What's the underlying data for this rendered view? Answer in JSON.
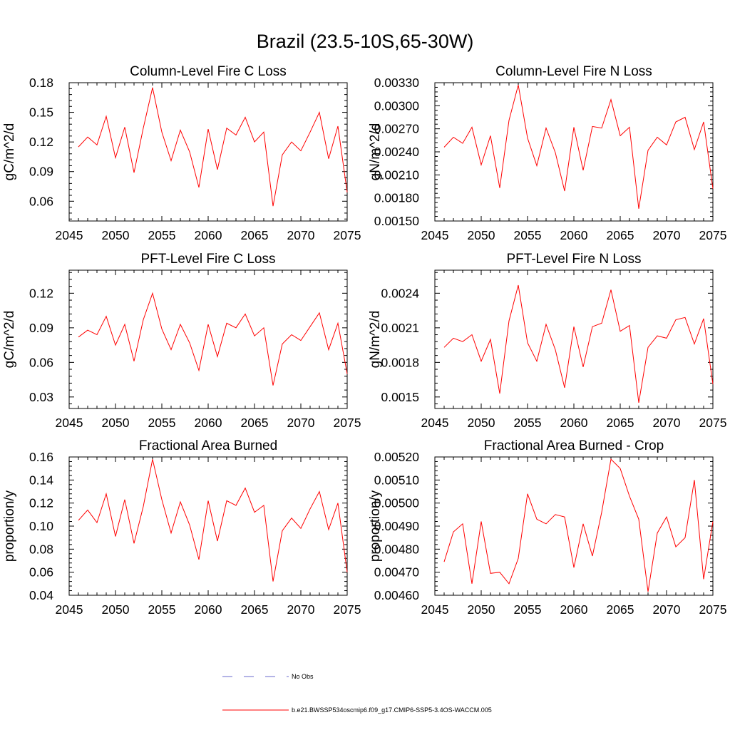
{
  "title": "Brazil (23.5-10S,65-30W)",
  "colors": {
    "model": "#ff0000",
    "obs": "#6a6acd",
    "axis": "#000000"
  },
  "legend": {
    "obs_label": "No Obs",
    "model_label": "b.e21.BWSSP534oscmip6.f09_g17.CMIP6-SSP5-3.4OS-WACCM.005"
  },
  "chart_data": [
    {
      "type": "line",
      "title": "Column-Level Fire C Loss",
      "ylabel": "gC/m^2/d",
      "xlim": [
        2045,
        2075
      ],
      "xticks": [
        2045,
        2050,
        2055,
        2060,
        2065,
        2070,
        2075
      ],
      "xtick_labels": [
        "2045",
        "2050",
        "2055",
        "2060",
        "2065",
        "2070",
        "2075"
      ],
      "ylim": [
        0.04,
        0.18
      ],
      "yticks": [
        0.06,
        0.09,
        0.12,
        0.15,
        0.18
      ],
      "ytick_labels": [
        "0.06",
        "0.09",
        "0.12",
        "0.15",
        "0.18"
      ],
      "x": [
        2046,
        2047,
        2048,
        2049,
        2050,
        2051,
        2052,
        2053,
        2054,
        2055,
        2056,
        2057,
        2058,
        2059,
        2060,
        2061,
        2062,
        2063,
        2064,
        2065,
        2066,
        2067,
        2068,
        2069,
        2070,
        2071,
        2072,
        2073,
        2074,
        2075
      ],
      "series": [
        {
          "name": "b.e21.BWSSP534oscmip6.f09_g17.CMIP6-SSP5-3.4OS-WACCM.005",
          "values": [
            0.115,
            0.125,
            0.117,
            0.146,
            0.104,
            0.135,
            0.089,
            0.134,
            0.175,
            0.13,
            0.101,
            0.132,
            0.11,
            0.074,
            0.133,
            0.092,
            0.134,
            0.127,
            0.145,
            0.12,
            0.13,
            0.055,
            0.107,
            0.12,
            0.111,
            0.13,
            0.15,
            0.103,
            0.136,
            0.069
          ]
        }
      ]
    },
    {
      "type": "line",
      "title": "Column-Level Fire N Loss",
      "ylabel": "gN/m^2/d",
      "xlim": [
        2045,
        2075
      ],
      "xticks": [
        2045,
        2050,
        2055,
        2060,
        2065,
        2070,
        2075
      ],
      "xtick_labels": [
        "2045",
        "2050",
        "2055",
        "2060",
        "2065",
        "2070",
        "2075"
      ],
      "ylim": [
        0.0015,
        0.0033
      ],
      "yticks": [
        0.0015,
        0.0018,
        0.0021,
        0.0024,
        0.0027,
        0.003,
        0.0033
      ],
      "ytick_labels": [
        "0.00150",
        "0.00180",
        "0.00210",
        "0.00240",
        "0.00270",
        "0.00300",
        "0.00330"
      ],
      "x": [
        2046,
        2047,
        2048,
        2049,
        2050,
        2051,
        2052,
        2053,
        2054,
        2055,
        2056,
        2057,
        2058,
        2059,
        2060,
        2061,
        2062,
        2063,
        2064,
        2065,
        2066,
        2067,
        2068,
        2069,
        2070,
        2071,
        2072,
        2073,
        2074,
        2075
      ],
      "series": [
        {
          "name": "b.e21.BWSSP534oscmip6.f09_g17.CMIP6-SSP5-3.4OS-WACCM.005",
          "values": [
            0.00246,
            0.00259,
            0.00251,
            0.00272,
            0.00223,
            0.00261,
            0.00193,
            0.00281,
            0.00327,
            0.00258,
            0.00222,
            0.00271,
            0.00239,
            0.00189,
            0.00272,
            0.00216,
            0.00273,
            0.00271,
            0.00308,
            0.00261,
            0.00272,
            0.00166,
            0.00242,
            0.00259,
            0.00249,
            0.00279,
            0.00285,
            0.00243,
            0.00279,
            0.00192
          ]
        }
      ]
    },
    {
      "type": "line",
      "title": "PFT-Level Fire C Loss",
      "ylabel": "gC/m^2/d",
      "xlim": [
        2045,
        2075
      ],
      "xticks": [
        2045,
        2050,
        2055,
        2060,
        2065,
        2070,
        2075
      ],
      "xtick_labels": [
        "2045",
        "2050",
        "2055",
        "2060",
        "2065",
        "2070",
        "2075"
      ],
      "ylim": [
        0.02,
        0.14
      ],
      "yticks": [
        0.03,
        0.06,
        0.09,
        0.12
      ],
      "ytick_labels": [
        "0.03",
        "0.06",
        "0.09",
        "0.12"
      ],
      "x": [
        2046,
        2047,
        2048,
        2049,
        2050,
        2051,
        2052,
        2053,
        2054,
        2055,
        2056,
        2057,
        2058,
        2059,
        2060,
        2061,
        2062,
        2063,
        2064,
        2065,
        2066,
        2067,
        2068,
        2069,
        2070,
        2071,
        2072,
        2073,
        2074,
        2075
      ],
      "series": [
        {
          "name": "b.e21.BWSSP534oscmip6.f09_g17.CMIP6-SSP5-3.4OS-WACCM.005",
          "values": [
            0.082,
            0.088,
            0.084,
            0.1,
            0.075,
            0.093,
            0.061,
            0.097,
            0.12,
            0.089,
            0.071,
            0.093,
            0.077,
            0.053,
            0.093,
            0.065,
            0.094,
            0.09,
            0.102,
            0.083,
            0.09,
            0.04,
            0.076,
            0.084,
            0.079,
            0.091,
            0.103,
            0.071,
            0.094,
            0.05
          ]
        }
      ]
    },
    {
      "type": "line",
      "title": "PFT-Level Fire N Loss",
      "ylabel": "gN/m^2/d",
      "xlim": [
        2045,
        2075
      ],
      "xticks": [
        2045,
        2050,
        2055,
        2060,
        2065,
        2070,
        2075
      ],
      "xtick_labels": [
        "2045",
        "2050",
        "2055",
        "2060",
        "2065",
        "2070",
        "2075"
      ],
      "ylim": [
        0.0014,
        0.0026
      ],
      "yticks": [
        0.0015,
        0.0018,
        0.0021,
        0.0024
      ],
      "ytick_labels": [
        "0.0015",
        "0.0018",
        "0.0021",
        "0.0024"
      ],
      "x": [
        2046,
        2047,
        2048,
        2049,
        2050,
        2051,
        2052,
        2053,
        2054,
        2055,
        2056,
        2057,
        2058,
        2059,
        2060,
        2061,
        2062,
        2063,
        2064,
        2065,
        2066,
        2067,
        2068,
        2069,
        2070,
        2071,
        2072,
        2073,
        2074,
        2075
      ],
      "series": [
        {
          "name": "b.e21.BWSSP534oscmip6.f09_g17.CMIP6-SSP5-3.4OS-WACCM.005",
          "values": [
            0.00193,
            0.00201,
            0.00198,
            0.00204,
            0.00181,
            0.002,
            0.00153,
            0.00216,
            0.00247,
            0.00197,
            0.00181,
            0.00213,
            0.00191,
            0.00158,
            0.00211,
            0.00176,
            0.00211,
            0.00214,
            0.00243,
            0.00207,
            0.00212,
            0.00145,
            0.00193,
            0.00203,
            0.00201,
            0.00217,
            0.00219,
            0.00196,
            0.00218,
            0.00161
          ]
        }
      ]
    },
    {
      "type": "line",
      "title": "Fractional Area Burned",
      "ylabel": "proportion/y",
      "xlim": [
        2045,
        2075
      ],
      "xticks": [
        2045,
        2050,
        2055,
        2060,
        2065,
        2070,
        2075
      ],
      "xtick_labels": [
        "2045",
        "2050",
        "2055",
        "2060",
        "2065",
        "2070",
        "2075"
      ],
      "ylim": [
        0.04,
        0.16
      ],
      "yticks": [
        0.04,
        0.06,
        0.08,
        0.1,
        0.12,
        0.14,
        0.16
      ],
      "ytick_labels": [
        "0.04",
        "0.06",
        "0.08",
        "0.10",
        "0.12",
        "0.14",
        "0.16"
      ],
      "x": [
        2046,
        2047,
        2048,
        2049,
        2050,
        2051,
        2052,
        2053,
        2054,
        2055,
        2056,
        2057,
        2058,
        2059,
        2060,
        2061,
        2062,
        2063,
        2064,
        2065,
        2066,
        2067,
        2068,
        2069,
        2070,
        2071,
        2072,
        2073,
        2074,
        2075
      ],
      "series": [
        {
          "name": "b.e21.BWSSP534oscmip6.f09_g17.CMIP6-SSP5-3.4OS-WACCM.005",
          "values": [
            0.105,
            0.114,
            0.103,
            0.128,
            0.091,
            0.123,
            0.085,
            0.117,
            0.158,
            0.123,
            0.094,
            0.121,
            0.101,
            0.071,
            0.122,
            0.087,
            0.122,
            0.118,
            0.133,
            0.112,
            0.118,
            0.052,
            0.096,
            0.107,
            0.098,
            0.115,
            0.13,
            0.097,
            0.12,
            0.06
          ]
        }
      ]
    },
    {
      "type": "line",
      "title": "Fractional Area Burned - Crop",
      "ylabel": "proportion/y",
      "xlim": [
        2045,
        2075
      ],
      "xticks": [
        2045,
        2050,
        2055,
        2060,
        2065,
        2070,
        2075
      ],
      "xtick_labels": [
        "2045",
        "2050",
        "2055",
        "2060",
        "2065",
        "2070",
        "2075"
      ],
      "ylim": [
        0.0046,
        0.0052
      ],
      "yticks": [
        0.0046,
        0.0047,
        0.0048,
        0.0049,
        0.005,
        0.0051,
        0.0052
      ],
      "ytick_labels": [
        "0.00460",
        "0.00470",
        "0.00480",
        "0.00490",
        "0.00500",
        "0.00510",
        "0.00520"
      ],
      "x": [
        2046,
        2047,
        2048,
        2049,
        2050,
        2051,
        2052,
        2053,
        2054,
        2055,
        2056,
        2057,
        2058,
        2059,
        2060,
        2061,
        2062,
        2063,
        2064,
        2065,
        2066,
        2067,
        2068,
        2069,
        2070,
        2071,
        2072,
        2073,
        2074,
        2075
      ],
      "series": [
        {
          "name": "b.e21.BWSSP534oscmip6.f09_g17.CMIP6-SSP5-3.4OS-WACCM.005",
          "values": [
            0.004745,
            0.004875,
            0.00491,
            0.00465,
            0.00492,
            0.004695,
            0.0047,
            0.00465,
            0.00476,
            0.00504,
            0.00493,
            0.00491,
            0.00495,
            0.00494,
            0.00472,
            0.00491,
            0.00477,
            0.00496,
            0.00519,
            0.00515,
            0.00503,
            0.00493,
            0.004615,
            0.00487,
            0.00494,
            0.00481,
            0.00485,
            0.0051,
            0.00467,
            0.00492
          ]
        }
      ]
    }
  ]
}
